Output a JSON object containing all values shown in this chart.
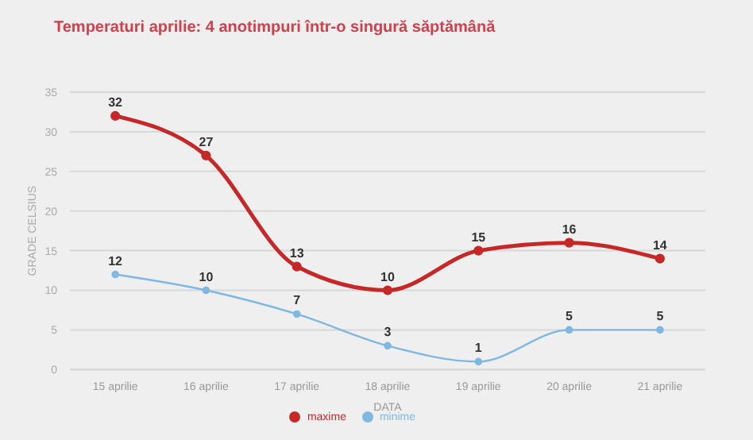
{
  "chart_data": {
    "type": "line",
    "title": "Temperaturi aprilie: 4 anotimpuri într-o singură săptămână",
    "xlabel": "DATA",
    "ylabel": "GRADE CELSIUS",
    "categories": [
      "15 aprilie",
      "16 aprilie",
      "17 aprilie",
      "18 aprilie",
      "19 aprilie",
      "20 aprilie",
      "21 aprilie"
    ],
    "series": [
      {
        "name": "maxime",
        "color": "#c62828",
        "values": [
          32,
          27,
          13,
          10,
          15,
          16,
          14
        ]
      },
      {
        "name": "minime",
        "color": "#7fb8e0",
        "values": [
          12,
          10,
          7,
          3,
          1,
          5,
          5
        ]
      }
    ],
    "ylim": [
      0,
      35
    ],
    "yticks": [
      0,
      5,
      10,
      15,
      20,
      25,
      30,
      35
    ],
    "grid": "y",
    "legend": "bottom",
    "marker": "circle",
    "data_labels": true
  }
}
